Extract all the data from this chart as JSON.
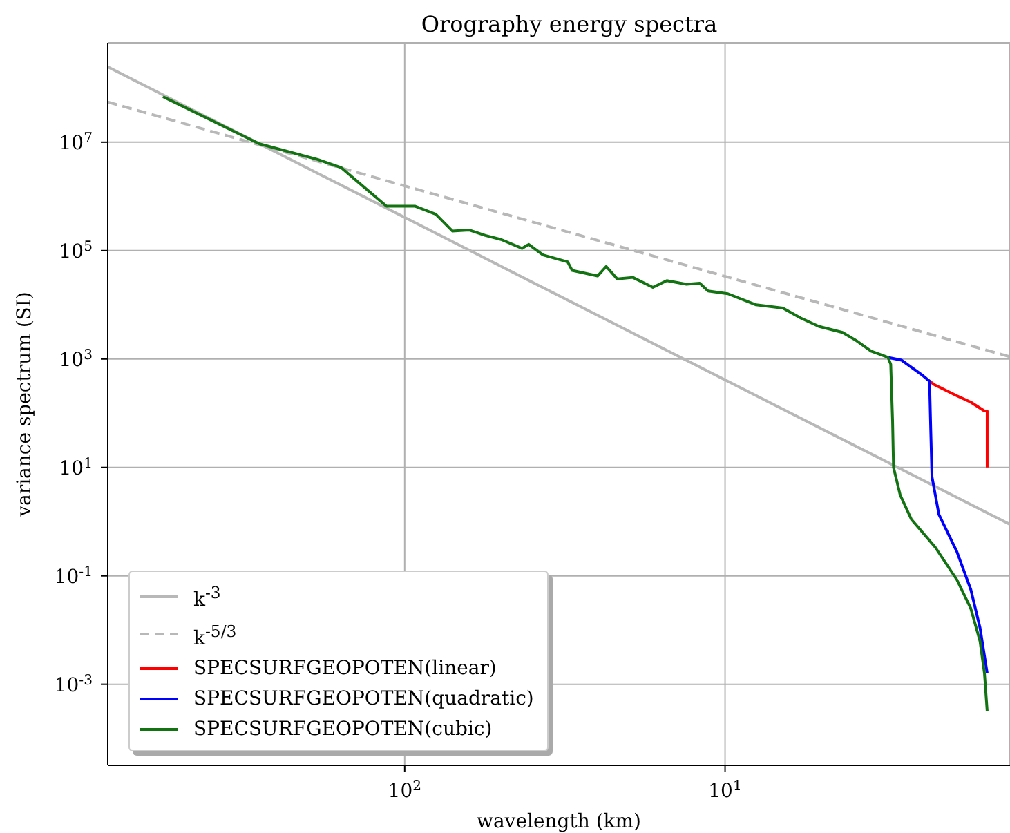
{
  "chart_data": {
    "type": "line",
    "title": "Orography energy spectra",
    "xlabel": "wavelength (km)",
    "ylabel": "variance spectrum (SI)",
    "log": "xy",
    "grid": true,
    "legend": "bottom left",
    "xlim": [
      845,
      1.29
    ],
    "xticks": [
      {
        "value": 100,
        "label": "10$^{2}$"
      },
      {
        "value": 10,
        "label": "10$^{1}$"
      }
    ],
    "ylim": [
      3.2e-05,
      680000000.0
    ],
    "yticks": [
      {
        "value": 0.001,
        "label": "10$^{-3}$"
      },
      {
        "value": 0.1,
        "label": "10$^{-1}$"
      },
      {
        "value": 10,
        "label": "10$^{1}$"
      },
      {
        "value": 1000,
        "label": "10$^{3}$"
      },
      {
        "value": 100000,
        "label": "10$^{5}$"
      },
      {
        "value": 10000000,
        "label": "10$^{7}$"
      }
    ],
    "series": [
      {
        "name": "k$^{-3}$",
        "color": "#b8b8b8",
        "line_style": "solid",
        "x": [
          845,
          1.29
        ],
        "values": [
          245000000.0,
          0.89
        ]
      },
      {
        "name": "k$^{-5/3}$",
        "color": "#b8b8b8",
        "line_style": "dashed",
        "x": [
          845,
          1.29
        ],
        "values": [
          55000000.0,
          1100
        ]
      },
      {
        "name": "SPECSURFGEOPOTEN(linear)",
        "color": "#ff0000",
        "x": [
          2.3,
          2.21,
          1.89,
          1.71,
          1.55,
          1.52,
          1.52
        ],
        "values": [
          390,
          330,
          210,
          160,
          110,
          110,
          10
        ]
      },
      {
        "name": "SPECSURFGEOPOTEN(quadratic)",
        "color": "#0000ff",
        "x": [
          3.1,
          2.81,
          2.44,
          2.3,
          2.28,
          2.26,
          2.15,
          1.89,
          1.71,
          1.6,
          1.52
        ],
        "values": [
          1070,
          950,
          520,
          390,
          48,
          6.7,
          1.35,
          0.28,
          0.056,
          0.011,
          0.0016
        ]
      },
      {
        "name": "SPECSURFGEOPOTEN(cubic)",
        "color": "#137313",
        "x": [
          568,
          284,
          187,
          158,
          114,
          93,
          80,
          71,
          63,
          56,
          50,
          43,
          41,
          37,
          31,
          30,
          25,
          23.5,
          21.7,
          19.4,
          16.8,
          15.2,
          13.2,
          12,
          11.3,
          9.8,
          8,
          6.6,
          5.8,
          5.1,
          4.3,
          3.9,
          3.5,
          3.1,
          3.04,
          3.0,
          2.98,
          2.84,
          2.62,
          2.21,
          1.89,
          1.71,
          1.6,
          1.55,
          1.52
        ],
        "values": [
          69000000.0,
          9300000.0,
          4800000.0,
          3400000.0,
          660000.0,
          660000.0,
          470000.0,
          230000.0,
          240000.0,
          190000.0,
          160000.0,
          110000.0,
          130000.0,
          83000.0,
          62000.0,
          43000.0,
          34000.0,
          51000.0,
          30000.0,
          32000.0,
          21000.0,
          28000.0,
          24000.0,
          25000.0,
          18000.0,
          16000.0,
          10000.0,
          8700,
          5700,
          4000,
          3100,
          2200,
          1400,
          1070,
          800,
          72,
          10,
          3.1,
          1.1,
          0.34,
          0.085,
          0.025,
          0.0062,
          0.0016,
          0.00032
        ]
      }
    ]
  }
}
